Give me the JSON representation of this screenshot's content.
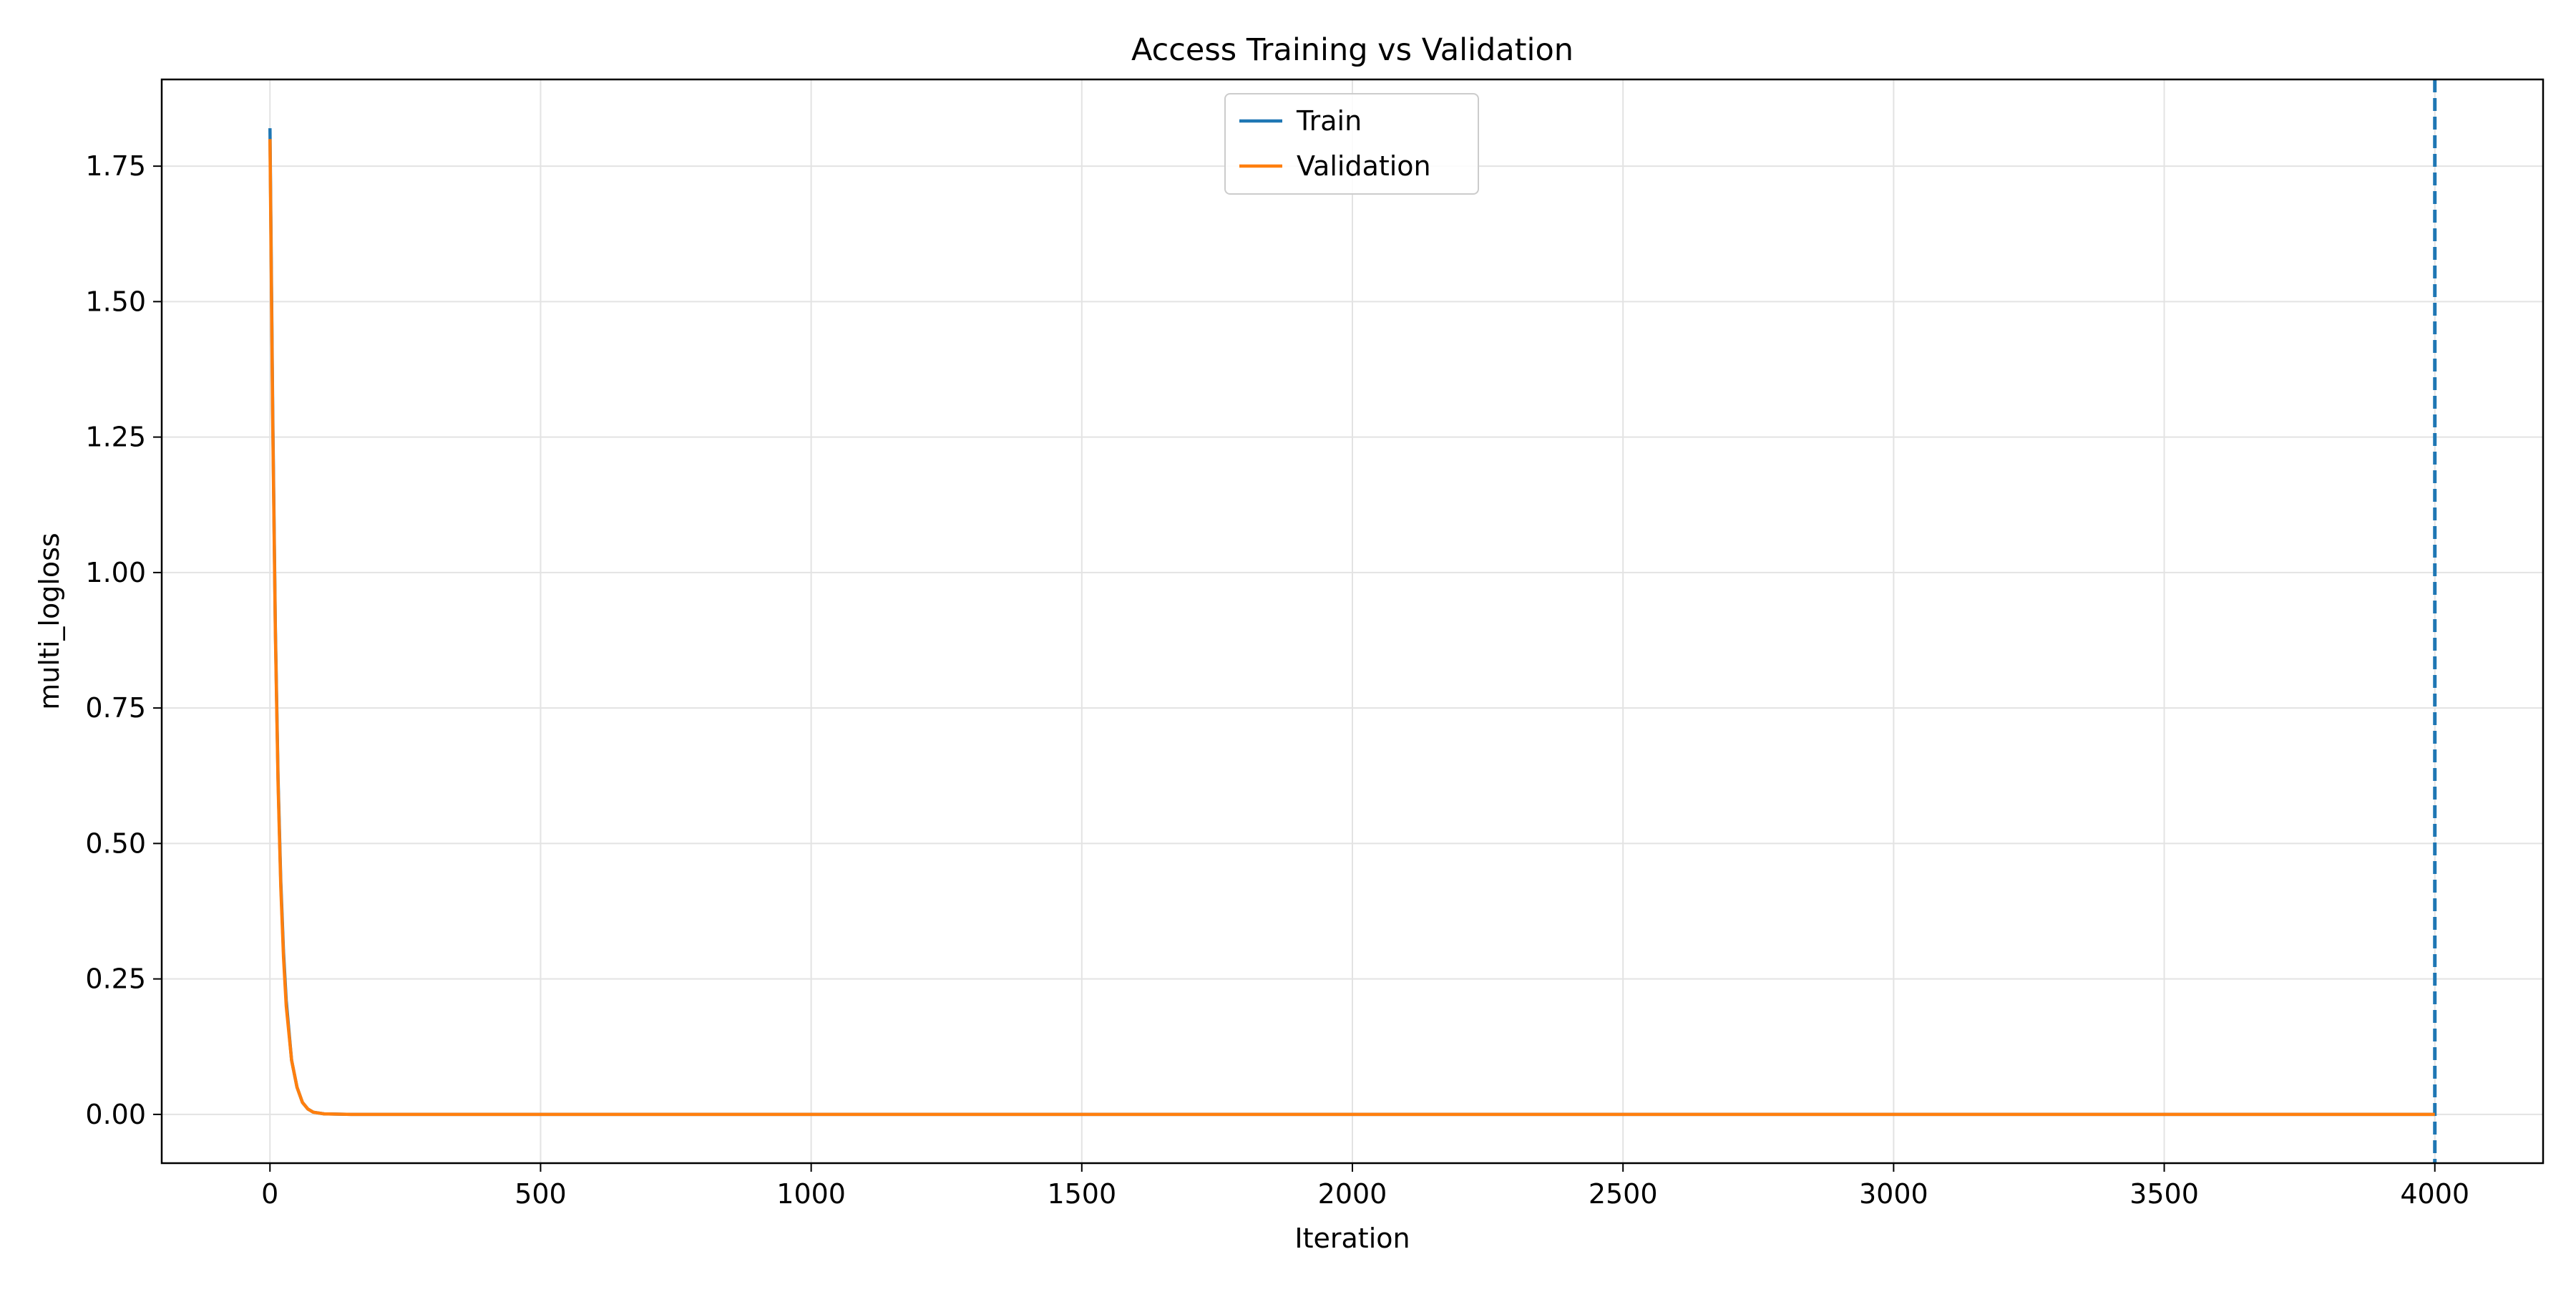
{
  "chart_data": {
    "type": "line",
    "title": "Access Training vs Validation",
    "xlabel": "Iteration",
    "ylabel": "multi_logloss",
    "xlim": [
      -200,
      4200
    ],
    "ylim": [
      -0.09,
      1.91
    ],
    "xticks": [
      0,
      500,
      1000,
      1500,
      2000,
      2500,
      3000,
      3500,
      4000
    ],
    "yticks": [
      0.0,
      0.25,
      0.5,
      0.75,
      1.0,
      1.25,
      1.5,
      1.75
    ],
    "ytick_labels": [
      "0.00",
      "0.25",
      "0.50",
      "0.75",
      "1.00",
      "1.25",
      "1.50",
      "1.75"
    ],
    "grid": true,
    "legend_position": "upper center",
    "vertical_marker": {
      "x": 4000,
      "style": "dashed",
      "color": "#1f77b4"
    },
    "series": [
      {
        "name": "Train",
        "color": "#1f77b4",
        "x": [
          0,
          5,
          10,
          15,
          20,
          25,
          30,
          40,
          50,
          60,
          70,
          80,
          100,
          150,
          500,
          1000,
          2000,
          3000,
          4000
        ],
        "y": [
          1.82,
          1.3,
          0.9,
          0.62,
          0.43,
          0.3,
          0.21,
          0.1,
          0.05,
          0.022,
          0.01,
          0.004,
          0.001,
          0.0,
          0.0,
          0.0,
          0.0,
          0.0,
          0.0
        ]
      },
      {
        "name": "Validation",
        "color": "#ff7f0e",
        "x": [
          0,
          5,
          10,
          15,
          20,
          25,
          30,
          40,
          50,
          60,
          70,
          80,
          100,
          150,
          500,
          1000,
          2000,
          3000,
          4000
        ],
        "y": [
          1.8,
          1.28,
          0.89,
          0.61,
          0.42,
          0.29,
          0.2,
          0.1,
          0.05,
          0.022,
          0.01,
          0.004,
          0.001,
          0.0,
          0.0,
          0.0,
          0.0,
          0.0,
          0.0
        ]
      }
    ]
  }
}
